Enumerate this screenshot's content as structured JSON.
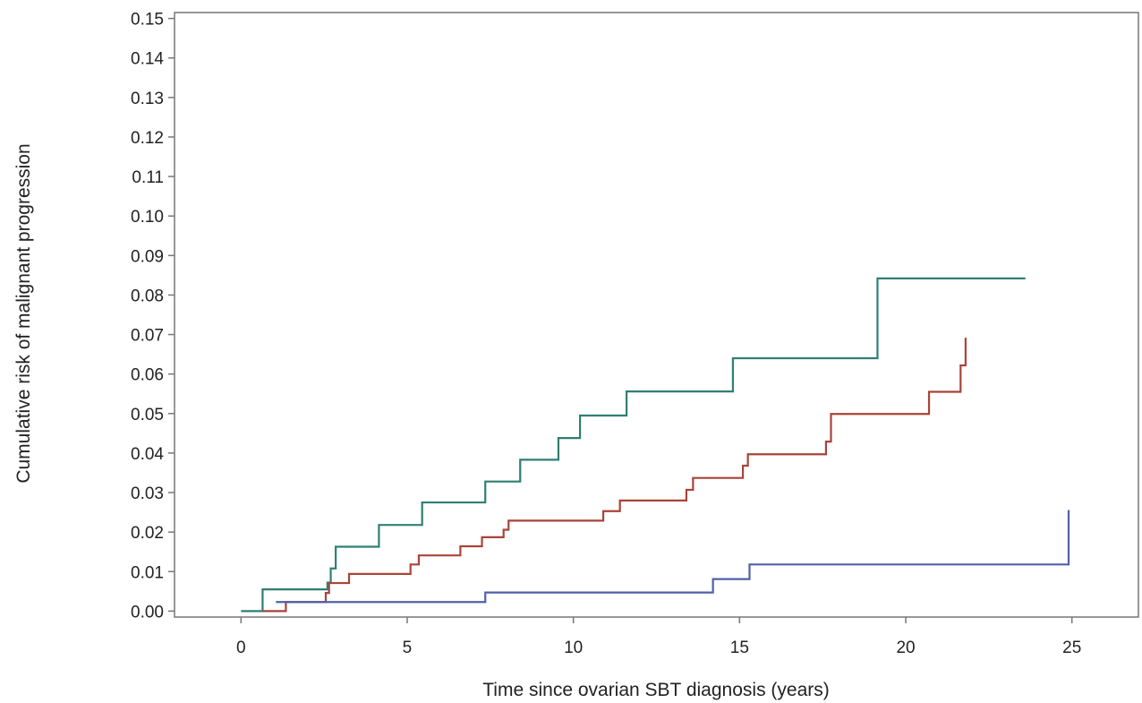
{
  "chart_data": {
    "type": "line",
    "step": true,
    "title": "",
    "xlabel": "Time since ovarian SBT diagnosis (years)",
    "ylabel": "Cumulative risk of malignant progression",
    "xlim": [
      -2,
      27
    ],
    "ylim": [
      -0.0015,
      0.1515
    ],
    "xticks": [
      0,
      5,
      10,
      15,
      20,
      25
    ],
    "xtick_labels": [
      "0",
      "5",
      "10",
      "15",
      "20",
      "25"
    ],
    "yticks": [
      0.0,
      0.01,
      0.02,
      0.03,
      0.04,
      0.05,
      0.06,
      0.07,
      0.08,
      0.09,
      0.1,
      0.11,
      0.12,
      0.13,
      0.14,
      0.15
    ],
    "ytick_labels": [
      "0.00",
      "0.01",
      "0.02",
      "0.03",
      "0.04",
      "0.05",
      "0.06",
      "0.07",
      "0.08",
      "0.09",
      "0.10",
      "0.11",
      "0.12",
      "0.13",
      "0.14",
      "0.15"
    ],
    "grid": false,
    "legend": "none",
    "series": [
      {
        "color": "#2e7f73",
        "x": [
          0,
          0.65,
          2.6,
          2.7,
          2.85,
          4.15,
          5.45,
          7.35,
          8.4,
          9.55,
          10.2,
          11.6,
          14.8,
          19.15,
          23.6
        ],
        "y": [
          0,
          0.0055,
          0.0072,
          0.0108,
          0.0163,
          0.0218,
          0.0275,
          0.0328,
          0.0383,
          0.0438,
          0.0495,
          0.0556,
          0.064,
          0.0842,
          0.0842
        ]
      },
      {
        "color": "#a84438",
        "x": [
          0.65,
          1.35,
          2.55,
          2.65,
          3.25,
          5.1,
          5.35,
          6.6,
          7.25,
          7.9,
          8.05,
          10.9,
          11.4,
          13.4,
          13.6,
          15.1,
          15.25,
          17.6,
          17.75,
          20.7,
          21.65,
          21.8,
          21.8
        ],
        "y": [
          0,
          0.0023,
          0.0046,
          0.0071,
          0.0094,
          0.0118,
          0.0141,
          0.0164,
          0.0187,
          0.0206,
          0.0229,
          0.0253,
          0.028,
          0.0307,
          0.0337,
          0.0368,
          0.0397,
          0.0429,
          0.0499,
          0.0555,
          0.0622,
          0.0692,
          0.0692
        ]
      },
      {
        "color": "#4f61a8",
        "x": [
          1.05,
          7.35,
          14.2,
          15.3,
          24.9,
          24.9
        ],
        "y": [
          0.0023,
          0.0047,
          0.0081,
          0.0118,
          0.0256,
          0.0256
        ]
      }
    ]
  }
}
